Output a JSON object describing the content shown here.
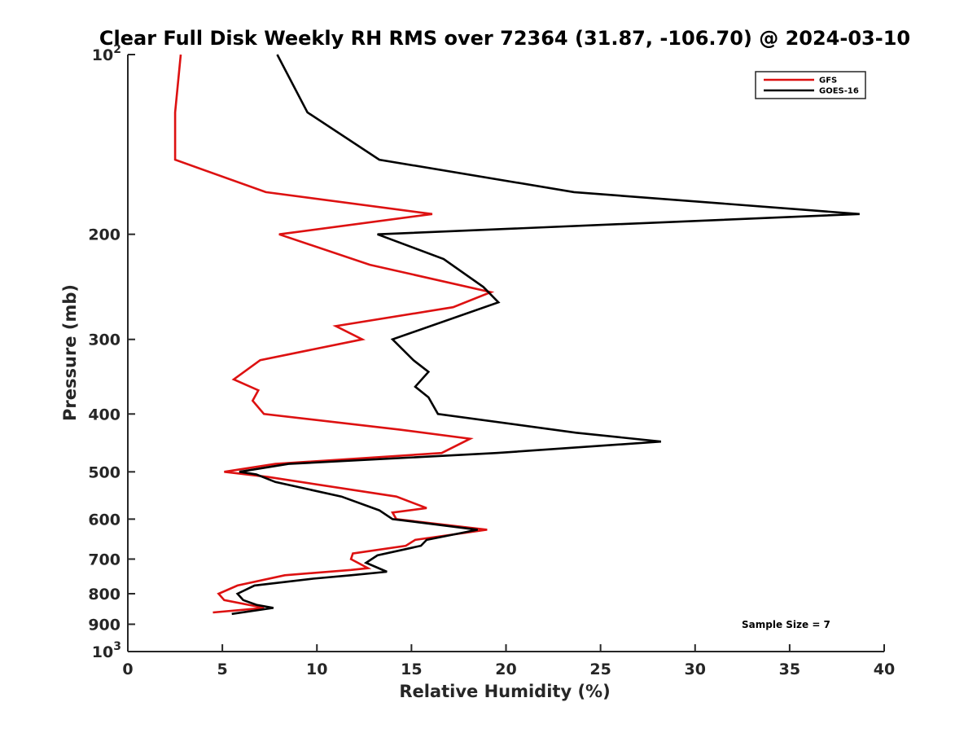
{
  "chart_data": {
    "type": "line",
    "title": "Clear Full Disk Weekly RH RMS over 72364 (31.87, -106.70) @ 2024-03-10",
    "xlabel": "Relative Humidity (%)",
    "ylabel": "Pressure (mb)",
    "xlim": [
      0,
      40
    ],
    "ylim": [
      100,
      1000
    ],
    "y_scale": "log",
    "y_reversed": true,
    "grid": false,
    "legend_position": "top-right",
    "x_ticks": [
      0,
      5,
      10,
      15,
      20,
      25,
      30,
      35,
      40
    ],
    "x_tick_labels": [
      "0",
      "5",
      "10",
      "15",
      "20",
      "25",
      "30",
      "35",
      "40"
    ],
    "y_ticks": [
      100,
      200,
      300,
      400,
      500,
      600,
      700,
      800,
      900,
      1000
    ],
    "y_tick_labels": [
      "10^2",
      "200",
      "300",
      "400",
      "500",
      "600",
      "700",
      "800",
      "900",
      "10^3"
    ],
    "annotation": "Sample Size = 7",
    "series": [
      {
        "name": "GFS",
        "color": "#dd1111",
        "points": [
          [
            2.8,
            100
          ],
          [
            2.5,
            125
          ],
          [
            2.5,
            150
          ],
          [
            7.3,
            170
          ],
          [
            16.1,
            185
          ],
          [
            8.0,
            200
          ],
          [
            12.8,
            225
          ],
          [
            19.2,
            250
          ],
          [
            17.2,
            265
          ],
          [
            11.0,
            285
          ],
          [
            12.4,
            300
          ],
          [
            7.0,
            325
          ],
          [
            5.6,
            350
          ],
          [
            6.9,
            365
          ],
          [
            6.6,
            380
          ],
          [
            7.2,
            400
          ],
          [
            14.4,
            425
          ],
          [
            18.1,
            440
          ],
          [
            16.6,
            465
          ],
          [
            7.8,
            485
          ],
          [
            5.1,
            500
          ],
          [
            7.4,
            510
          ],
          [
            14.2,
            550
          ],
          [
            15.8,
            575
          ],
          [
            14.0,
            585
          ],
          [
            14.2,
            600
          ],
          [
            19.0,
            625
          ],
          [
            15.2,
            650
          ],
          [
            14.7,
            665
          ],
          [
            11.9,
            685
          ],
          [
            11.8,
            700
          ],
          [
            12.7,
            725
          ],
          [
            11.8,
            730
          ],
          [
            8.3,
            745
          ],
          [
            5.8,
            775
          ],
          [
            4.8,
            800
          ],
          [
            5.1,
            820
          ],
          [
            6.8,
            840
          ],
          [
            7.2,
            845
          ],
          [
            4.5,
            860
          ]
        ]
      },
      {
        "name": "GOES-16",
        "color": "#000000",
        "points": [
          [
            7.9,
            100
          ],
          [
            9.5,
            125
          ],
          [
            13.3,
            150
          ],
          [
            23.6,
            170
          ],
          [
            38.7,
            185
          ],
          [
            13.2,
            200
          ],
          [
            16.7,
            220
          ],
          [
            18.8,
            245
          ],
          [
            19.6,
            260
          ],
          [
            14.0,
            300
          ],
          [
            15.1,
            325
          ],
          [
            15.9,
            340
          ],
          [
            15.2,
            360
          ],
          [
            15.9,
            375
          ],
          [
            16.4,
            400
          ],
          [
            23.7,
            430
          ],
          [
            28.2,
            445
          ],
          [
            19.5,
            465
          ],
          [
            8.5,
            485
          ],
          [
            5.9,
            500
          ],
          [
            6.8,
            505
          ],
          [
            7.8,
            520
          ],
          [
            11.3,
            550
          ],
          [
            13.3,
            580
          ],
          [
            14.0,
            600
          ],
          [
            18.5,
            625
          ],
          [
            15.8,
            650
          ],
          [
            15.5,
            665
          ],
          [
            13.2,
            690
          ],
          [
            12.6,
            710
          ],
          [
            13.7,
            735
          ],
          [
            11.8,
            745
          ],
          [
            9.8,
            755
          ],
          [
            6.7,
            775
          ],
          [
            5.8,
            800
          ],
          [
            6.1,
            820
          ],
          [
            6.8,
            835
          ],
          [
            7.7,
            845
          ],
          [
            5.5,
            865
          ]
        ]
      }
    ]
  }
}
